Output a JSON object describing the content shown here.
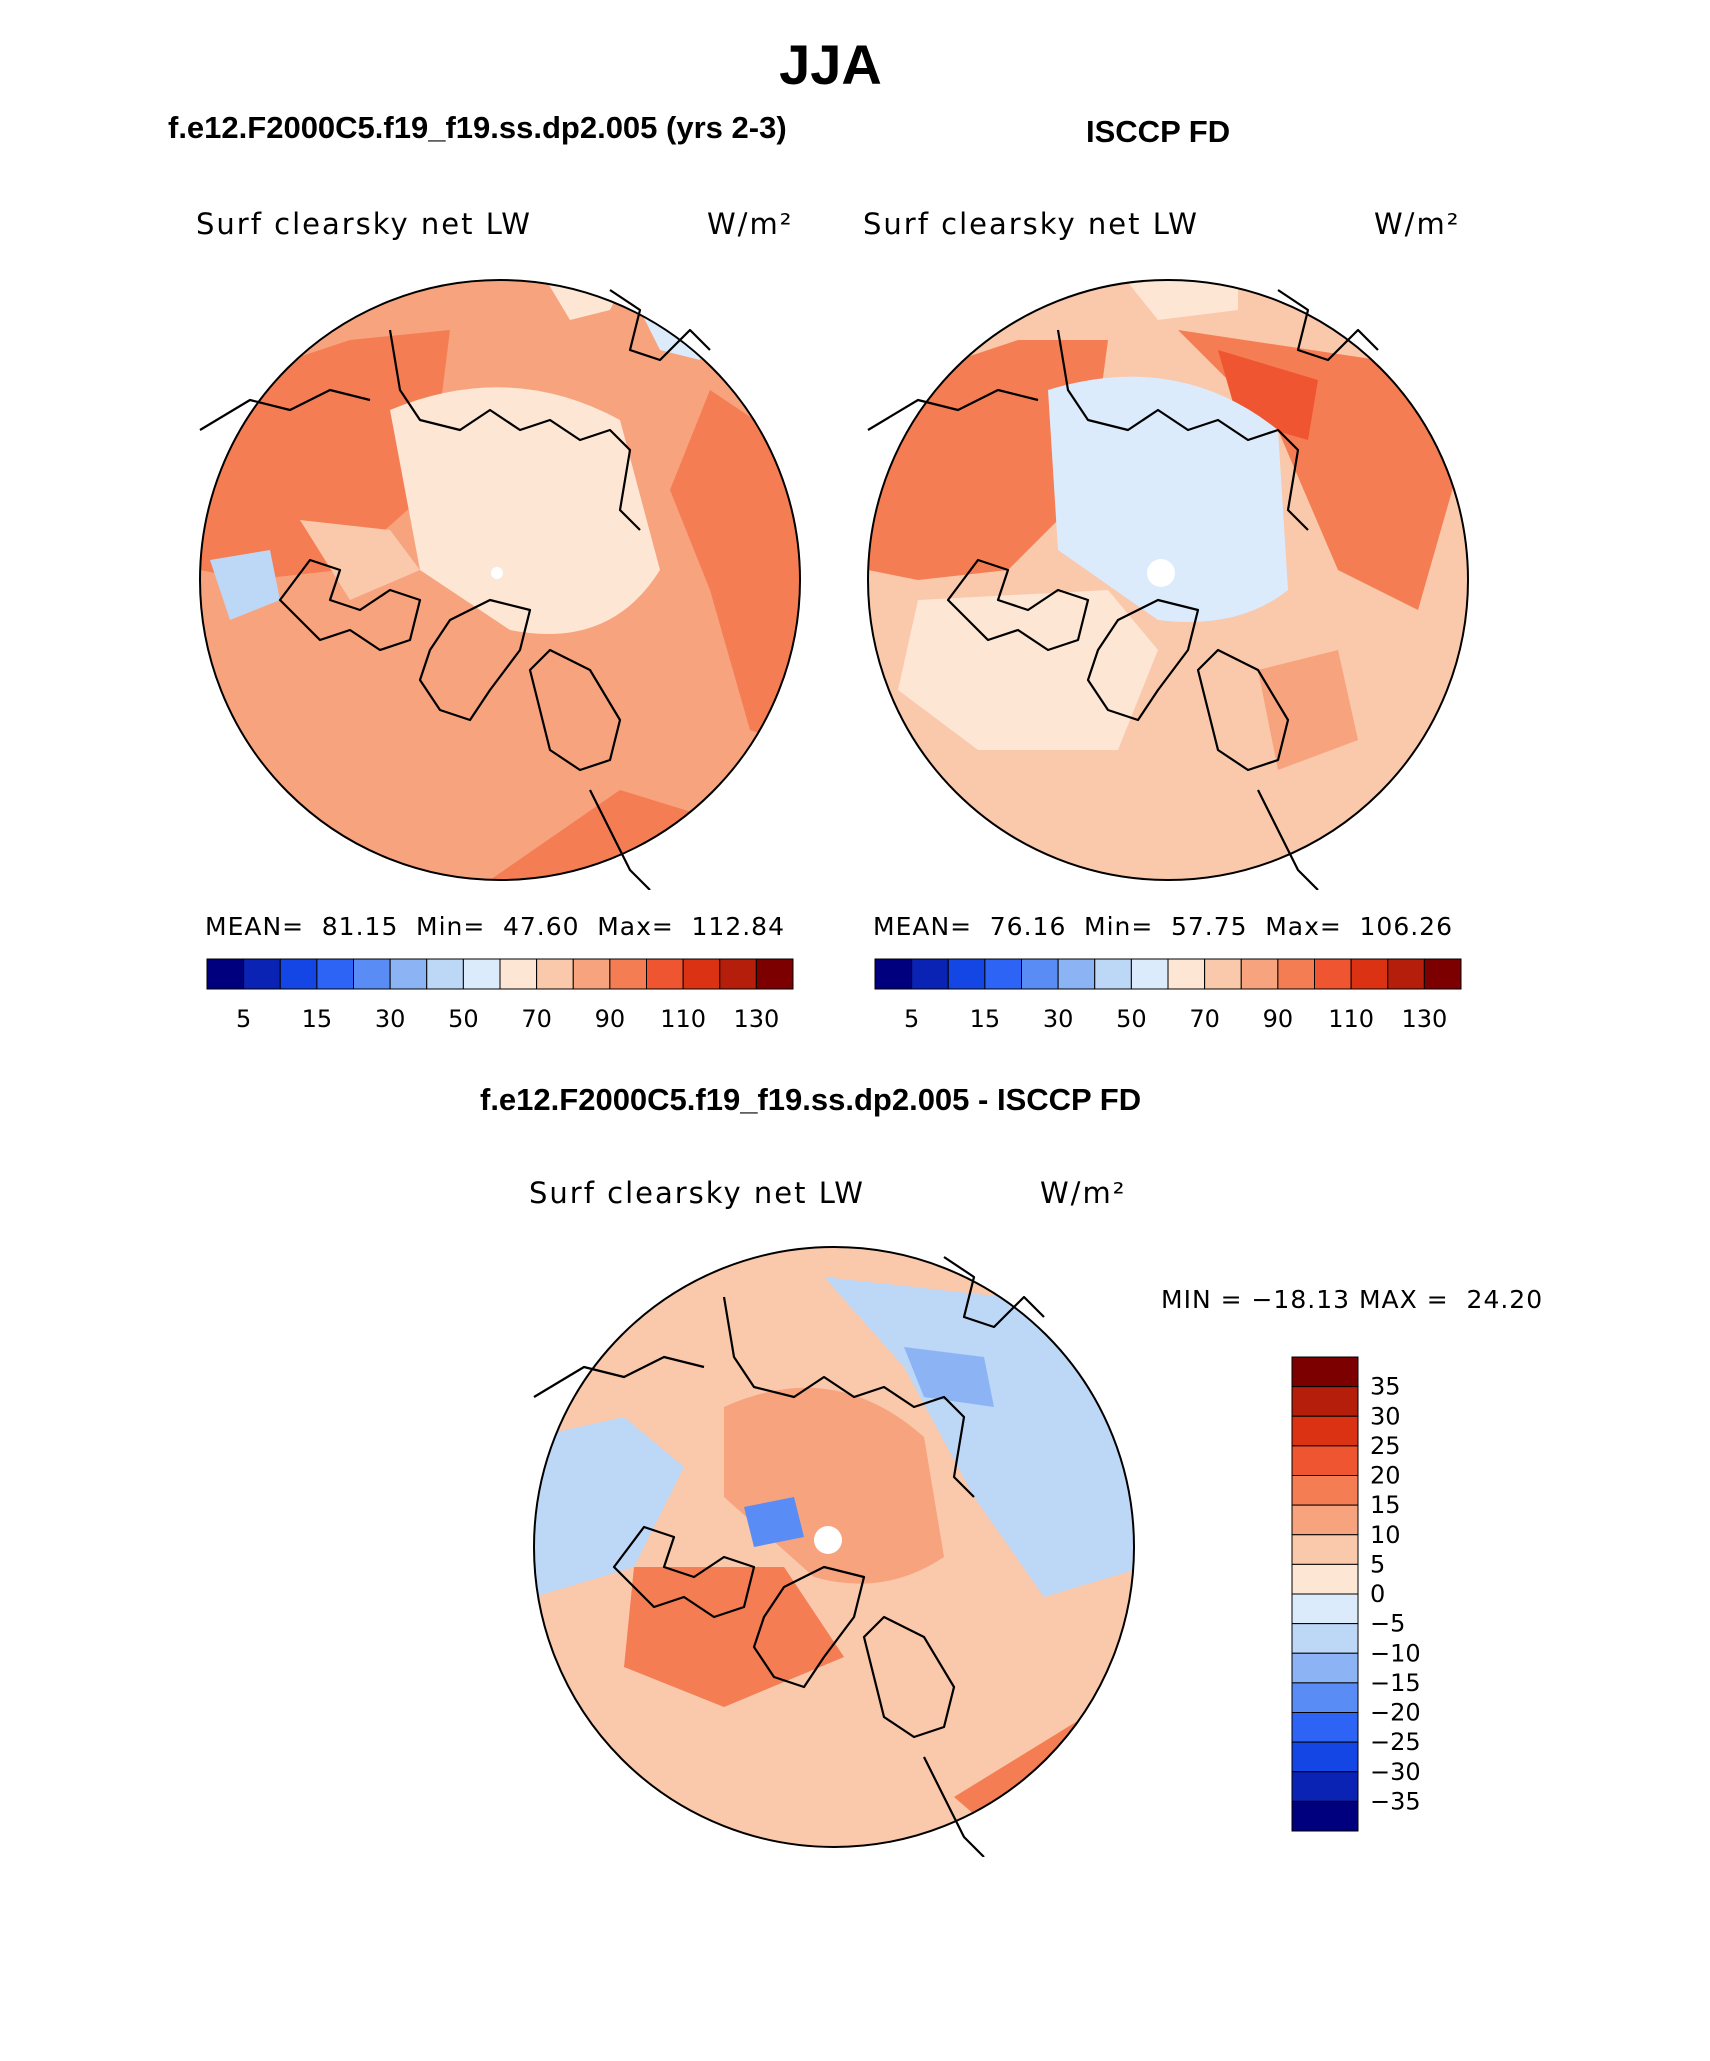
{
  "title": "JJA",
  "panels": [
    {
      "id": "model",
      "header": "f.e12.F2000C5.f19_f19.ss.dp2.005 (yrs 2-3)",
      "variable": "Surf clearsky net LW",
      "units": "W/m²",
      "stats": {
        "mean_label": "MEAN=",
        "mean": "81.15",
        "min_label": "Min=",
        "min": "47.60",
        "max_label": "Max=",
        "max": "112.84"
      },
      "colorbar_labels": [
        "5",
        "15",
        "30",
        "50",
        "70",
        "90",
        "110",
        "130"
      ]
    },
    {
      "id": "obs",
      "header": "ISCCP FD",
      "variable": "Surf clearsky net LW",
      "units": "W/m²",
      "stats": {
        "mean_label": "MEAN=",
        "mean": "76.16",
        "min_label": "Min=",
        "min": "57.75",
        "max_label": "Max=",
        "max": "106.26"
      },
      "colorbar_labels": [
        "5",
        "15",
        "30",
        "50",
        "70",
        "90",
        "110",
        "130"
      ]
    }
  ],
  "difference": {
    "header": "f.e12.F2000C5.f19_f19.ss.dp2.005 - ISCCP FD",
    "variable": "Surf clearsky net LW",
    "units": "W/m²",
    "minmax": "MIN = −18.13 MAX =  24.20",
    "colorbar_labels": [
      "35",
      "30",
      "25",
      "20",
      "15",
      "10",
      "5",
      "0",
      "−5",
      "−10",
      "−15",
      "−20",
      "−25",
      "−30",
      "−35"
    ]
  },
  "colors": {
    "abs_scale": [
      "#00007f",
      "#0a23b4",
      "#1446e6",
      "#2d64f5",
      "#5a8cf5",
      "#8cb4f5",
      "#bdd7f7",
      "#dcebfb",
      "#fde6d4",
      "#fac8aa",
      "#f7a37e",
      "#f47d54",
      "#ef5530",
      "#db3214",
      "#b41e0a",
      "#7d0000"
    ],
    "diff_scale": [
      "#7d0000",
      "#b41e0a",
      "#db3214",
      "#ef5530",
      "#f47d54",
      "#f7a37e",
      "#fac8aa",
      "#fde6d4",
      "#dcebfb",
      "#bdd7f7",
      "#8cb4f5",
      "#5a8cf5",
      "#2d64f5",
      "#1446e6",
      "#0a23b4",
      "#00007f"
    ]
  }
}
